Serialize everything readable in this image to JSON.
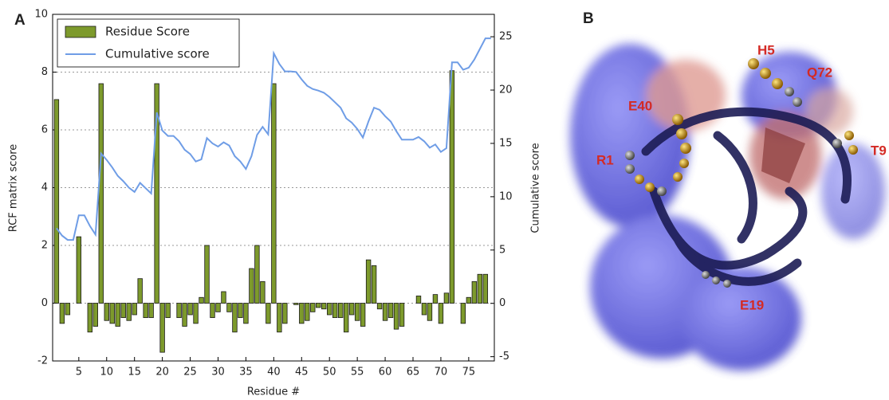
{
  "panel_a_label": "A",
  "chart_data": {
    "type": "bar",
    "x_label": "Residue #",
    "y_label": "RCF matrix score",
    "y2_label": "Cumulative score",
    "x": [
      1,
      2,
      3,
      4,
      5,
      6,
      7,
      8,
      9,
      10,
      11,
      12,
      13,
      14,
      15,
      16,
      17,
      18,
      19,
      20,
      21,
      22,
      23,
      24,
      25,
      26,
      27,
      28,
      29,
      30,
      31,
      32,
      33,
      34,
      35,
      36,
      37,
      38,
      39,
      40,
      41,
      42,
      43,
      44,
      45,
      46,
      47,
      48,
      49,
      50,
      51,
      52,
      53,
      54,
      55,
      56,
      57,
      58,
      59,
      60,
      61,
      62,
      63,
      64,
      65,
      66,
      67,
      68,
      69,
      70,
      71,
      72,
      73,
      74,
      75,
      76,
      77,
      78,
      79
    ],
    "series": [
      {
        "name": "Residue Score",
        "color": "#7d9a2c",
        "values": [
          7.05,
          -0.7,
          -0.4,
          0,
          2.3,
          0,
          -1.0,
          -0.8,
          7.6,
          -0.6,
          -0.7,
          -0.8,
          -0.5,
          -0.6,
          -0.4,
          0.85,
          -0.5,
          -0.5,
          7.6,
          -1.7,
          -0.5,
          0,
          -0.5,
          -0.8,
          -0.4,
          -0.7,
          0.2,
          2.0,
          -0.5,
          -0.3,
          0.4,
          -0.3,
          -1.0,
          -0.5,
          -0.7,
          1.2,
          2.0,
          0.75,
          -0.7,
          7.6,
          -1.0,
          -0.7,
          0,
          -0.05,
          -0.7,
          -0.6,
          -0.3,
          -0.15,
          -0.2,
          -0.4,
          -0.5,
          -0.5,
          -1.0,
          -0.4,
          -0.6,
          -0.8,
          1.5,
          1.3,
          -0.2,
          -0.6,
          -0.5,
          -0.9,
          -0.8,
          0,
          0,
          0.25,
          -0.4,
          -0.6,
          0.3,
          -0.7,
          0.35,
          8.05,
          0,
          -0.7,
          0.2,
          0.75,
          1.0,
          1.0,
          0
        ]
      },
      {
        "name": "Cumulative score",
        "color": "#6f9de6",
        "type": "line",
        "axis": "y2",
        "values": [
          7.05,
          6.35,
          5.95,
          5.95,
          8.25,
          8.25,
          7.25,
          6.45,
          14.05,
          13.45,
          12.75,
          11.95,
          11.45,
          10.85,
          10.45,
          11.3,
          10.8,
          10.3,
          17.9,
          16.2,
          15.7,
          15.7,
          15.2,
          14.4,
          14.0,
          13.3,
          13.5,
          15.5,
          15.0,
          14.7,
          15.1,
          14.8,
          13.8,
          13.3,
          12.6,
          13.8,
          15.8,
          16.55,
          15.85,
          23.45,
          22.45,
          21.75,
          21.75,
          21.7,
          21.0,
          20.4,
          20.1,
          19.95,
          19.75,
          19.35,
          18.85,
          18.35,
          17.35,
          16.95,
          16.35,
          15.55,
          17.05,
          18.35,
          18.15,
          17.55,
          17.05,
          16.15,
          15.35,
          15.35,
          15.35,
          15.6,
          15.2,
          14.6,
          14.9,
          14.2,
          14.55,
          22.6,
          22.6,
          21.9,
          22.1,
          22.85,
          23.85,
          24.85,
          24.85
        ]
      }
    ],
    "xlim": [
      0.3,
      79.6
    ],
    "xticks": [
      5,
      10,
      15,
      20,
      25,
      30,
      35,
      40,
      45,
      50,
      55,
      60,
      65,
      70,
      75
    ],
    "ylim": [
      -2,
      10
    ],
    "yticks": [
      -2,
      0,
      2,
      4,
      6,
      8,
      10
    ],
    "y2lim": [
      -5.4,
      27.1
    ],
    "y2ticks": [
      -5,
      0,
      5,
      10,
      15,
      20,
      25
    ],
    "grid": true,
    "legend": "upper left"
  },
  "panel_b": {
    "label": "B",
    "residue_labels": [
      "H5",
      "Q72",
      "E40",
      "R1",
      "T9",
      "E19"
    ]
  }
}
